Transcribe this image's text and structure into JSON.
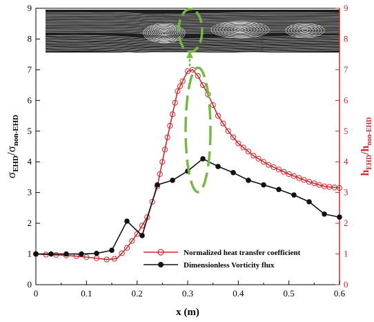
{
  "chart_data": {
    "type": "line",
    "xlabel": "x (m)",
    "ylabel_left": "σ_EHD/σ_non-EHD",
    "ylabel_right": "h_EHD/h_non-EHD",
    "xlim": [
      0,
      0.6
    ],
    "ylim": [
      0,
      9
    ],
    "x_ticks": [
      "0",
      "0.1",
      "0.2",
      "0.3",
      "0.4",
      "0.5",
      "0.6"
    ],
    "y_ticks": [
      "0",
      "1",
      "2",
      "3",
      "4",
      "5",
      "6",
      "7",
      "8",
      "9"
    ],
    "legend_position": "bottom-right",
    "colors": {
      "heat": "#c8282d",
      "vorticity": "#111111",
      "annotation": "#77b844",
      "right_axis": "#c8282d"
    },
    "series": [
      {
        "name": "Normalized heat transfer coefficient",
        "color": "#c8282d",
        "line": {
          "x": [
            0,
            0.02,
            0.05,
            0.08,
            0.11,
            0.14,
            0.16,
            0.18,
            0.2,
            0.22,
            0.24,
            0.26,
            0.28,
            0.3,
            0.31,
            0.32,
            0.34,
            0.36,
            0.38,
            0.4,
            0.43,
            0.46,
            0.5,
            0.54,
            0.57,
            0.6
          ],
          "y": [
            1.0,
            0.98,
            0.96,
            0.93,
            0.88,
            0.82,
            0.85,
            1.2,
            1.65,
            2.2,
            3.2,
            4.8,
            6.3,
            6.95,
            7.0,
            6.8,
            6.2,
            5.5,
            5.0,
            4.6,
            4.2,
            3.9,
            3.6,
            3.35,
            3.2,
            3.15
          ],
          "markers_x": [
            0.0,
            0.02,
            0.04,
            0.06,
            0.08,
            0.1,
            0.12,
            0.14,
            0.155,
            0.17,
            0.18,
            0.19,
            0.2,
            0.21,
            0.22,
            0.23,
            0.24,
            0.245,
            0.25,
            0.255,
            0.26,
            0.265,
            0.27,
            0.275,
            0.28,
            0.285,
            0.29,
            0.3,
            0.31,
            0.32,
            0.33,
            0.34,
            0.35,
            0.36,
            0.37,
            0.38,
            0.39,
            0.4,
            0.41,
            0.42,
            0.43,
            0.44,
            0.45,
            0.46,
            0.47,
            0.48,
            0.49,
            0.5,
            0.51,
            0.52,
            0.53,
            0.54,
            0.55,
            0.56,
            0.57,
            0.58,
            0.59,
            0.6
          ]
        }
      },
      {
        "name": "Dimensionless Vorticity flux",
        "color": "#111111",
        "x": [
          0.0,
          0.03,
          0.06,
          0.09,
          0.12,
          0.15,
          0.18,
          0.21,
          0.24,
          0.27,
          0.3,
          0.33,
          0.36,
          0.39,
          0.42,
          0.45,
          0.48,
          0.51,
          0.54,
          0.57,
          0.6
        ],
        "y": [
          1.0,
          1.0,
          1.0,
          1.0,
          1.02,
          1.12,
          2.07,
          1.6,
          3.25,
          3.4,
          3.7,
          4.1,
          3.85,
          3.65,
          3.4,
          3.25,
          3.1,
          2.92,
          2.7,
          2.3,
          2.2
        ]
      }
    ]
  }
}
